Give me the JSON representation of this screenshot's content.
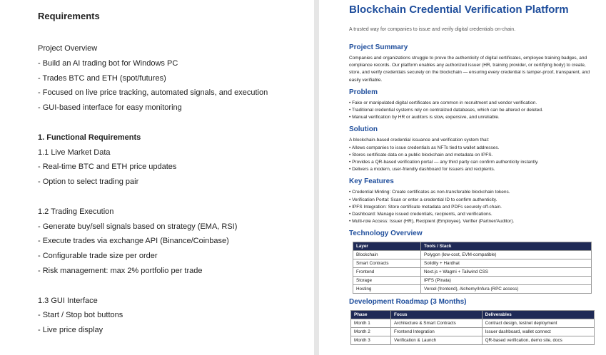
{
  "left_page": {
    "title": "Requirements",
    "intro": {
      "heading": "Project Overview",
      "items": [
        "- Build an AI trading bot for Windows PC",
        "- Trades BTC and ETH (spot/futures)",
        "- Focused on live price tracking, automated signals, and execution",
        "- GUI-based interface for easy monitoring"
      ]
    },
    "functional": {
      "title": "1. Functional Requirements",
      "subsections": [
        {
          "heading": "1.1 Live Market Data",
          "items": [
            "- Real-time BTC and ETH price updates",
            "- Option to select trading pair"
          ]
        },
        {
          "heading": "1.2 Trading Execution",
          "items": [
            "- Generate buy/sell signals based on strategy (EMA, RSI)",
            "- Execute trades via exchange API (Binance/Coinbase)",
            "- Configurable trade size per order",
            "- Risk management: max 2% portfolio per trade"
          ]
        },
        {
          "heading": "1.3 GUI Interface",
          "items": [
            "- Start / Stop bot buttons",
            "- Live price display"
          ]
        }
      ]
    }
  },
  "right_page": {
    "title": "Blockchain Credential Verification Platform",
    "subtitle": "A trusted way for companies to issue and verify digital credentials on-chain.",
    "sections": [
      {
        "heading": "Project Summary",
        "paragraph": "Companies and organizations struggle to prove the authenticity of digital certificates, employee training badges, and compliance records. Our platform enables any authorized issuer (HR, training provider, or certifying body) to create, store, and verify credentials securely on the blockchain — ensuring every credential is tamper-proof, transparent, and easily verifiable."
      },
      {
        "heading": "Problem",
        "bullets": [
          "• Fake or manipulated digital certificates are common in recruitment and vendor verification.",
          "• Traditional credential systems rely on centralized databases, which can be altered or deleted.",
          "• Manual verification by HR or auditors is slow, expensive, and unreliable."
        ]
      },
      {
        "heading": "Solution",
        "paragraph": "A blockchain-based credential issuance and verification system that:",
        "bullets": [
          "• Allows companies to issue credentials as NFTs tied to wallet addresses.",
          "• Stores certificate data on a public blockchain and metadata on IPFS.",
          "• Provides a QR-based verification portal — any third party can confirm authenticity instantly.",
          "• Delivers a modern, user-friendly dashboard for issuers and recipients."
        ]
      },
      {
        "heading": "Key Features",
        "bullets": [
          "• Credential Minting: Create certificates as non-transferable blockchain tokens.",
          "• Verification Portal: Scan or enter a credential ID to confirm authenticity.",
          "• IPFS Integration: Store certificate metadata and PDFs securely off-chain.",
          "• Dashboard: Manage issued credentials, recipients, and verifications.",
          "• Multi-role Access: Issuer (HR), Recipient (Employee), Verifier (Partner/Auditor)."
        ]
      },
      {
        "heading": "Technology Overview",
        "table": {
          "columns": [
            "Layer",
            "Tools / Stack"
          ],
          "rows": [
            [
              "Blockchain",
              "Polygon (low-cost, EVM-compatible)"
            ],
            [
              "Smart Contracts",
              "Solidity + Hardhat"
            ],
            [
              "Frontend",
              "Next.js + Wagmi + Tailwind CSS"
            ],
            [
              "Storage",
              "IPFS (Pinata)"
            ],
            [
              "Hosting",
              "Vercel (frontend), Alchemy/Infura (RPC access)"
            ]
          ]
        }
      },
      {
        "heading": "Development Roadmap (3 Months)",
        "table": {
          "columns": [
            "Phase",
            "Focus",
            "Deliverables"
          ],
          "rows": [
            [
              "Month 1",
              "Architecture & Smart Contracts",
              "Contract design, testnet deployment"
            ],
            [
              "Month 2",
              "Frontend Integration",
              "Issuer dashboard, wallet connect"
            ],
            [
              "Month 3",
              "Verification & Launch",
              "QR-based verification, demo site, docs"
            ]
          ]
        }
      }
    ]
  }
}
